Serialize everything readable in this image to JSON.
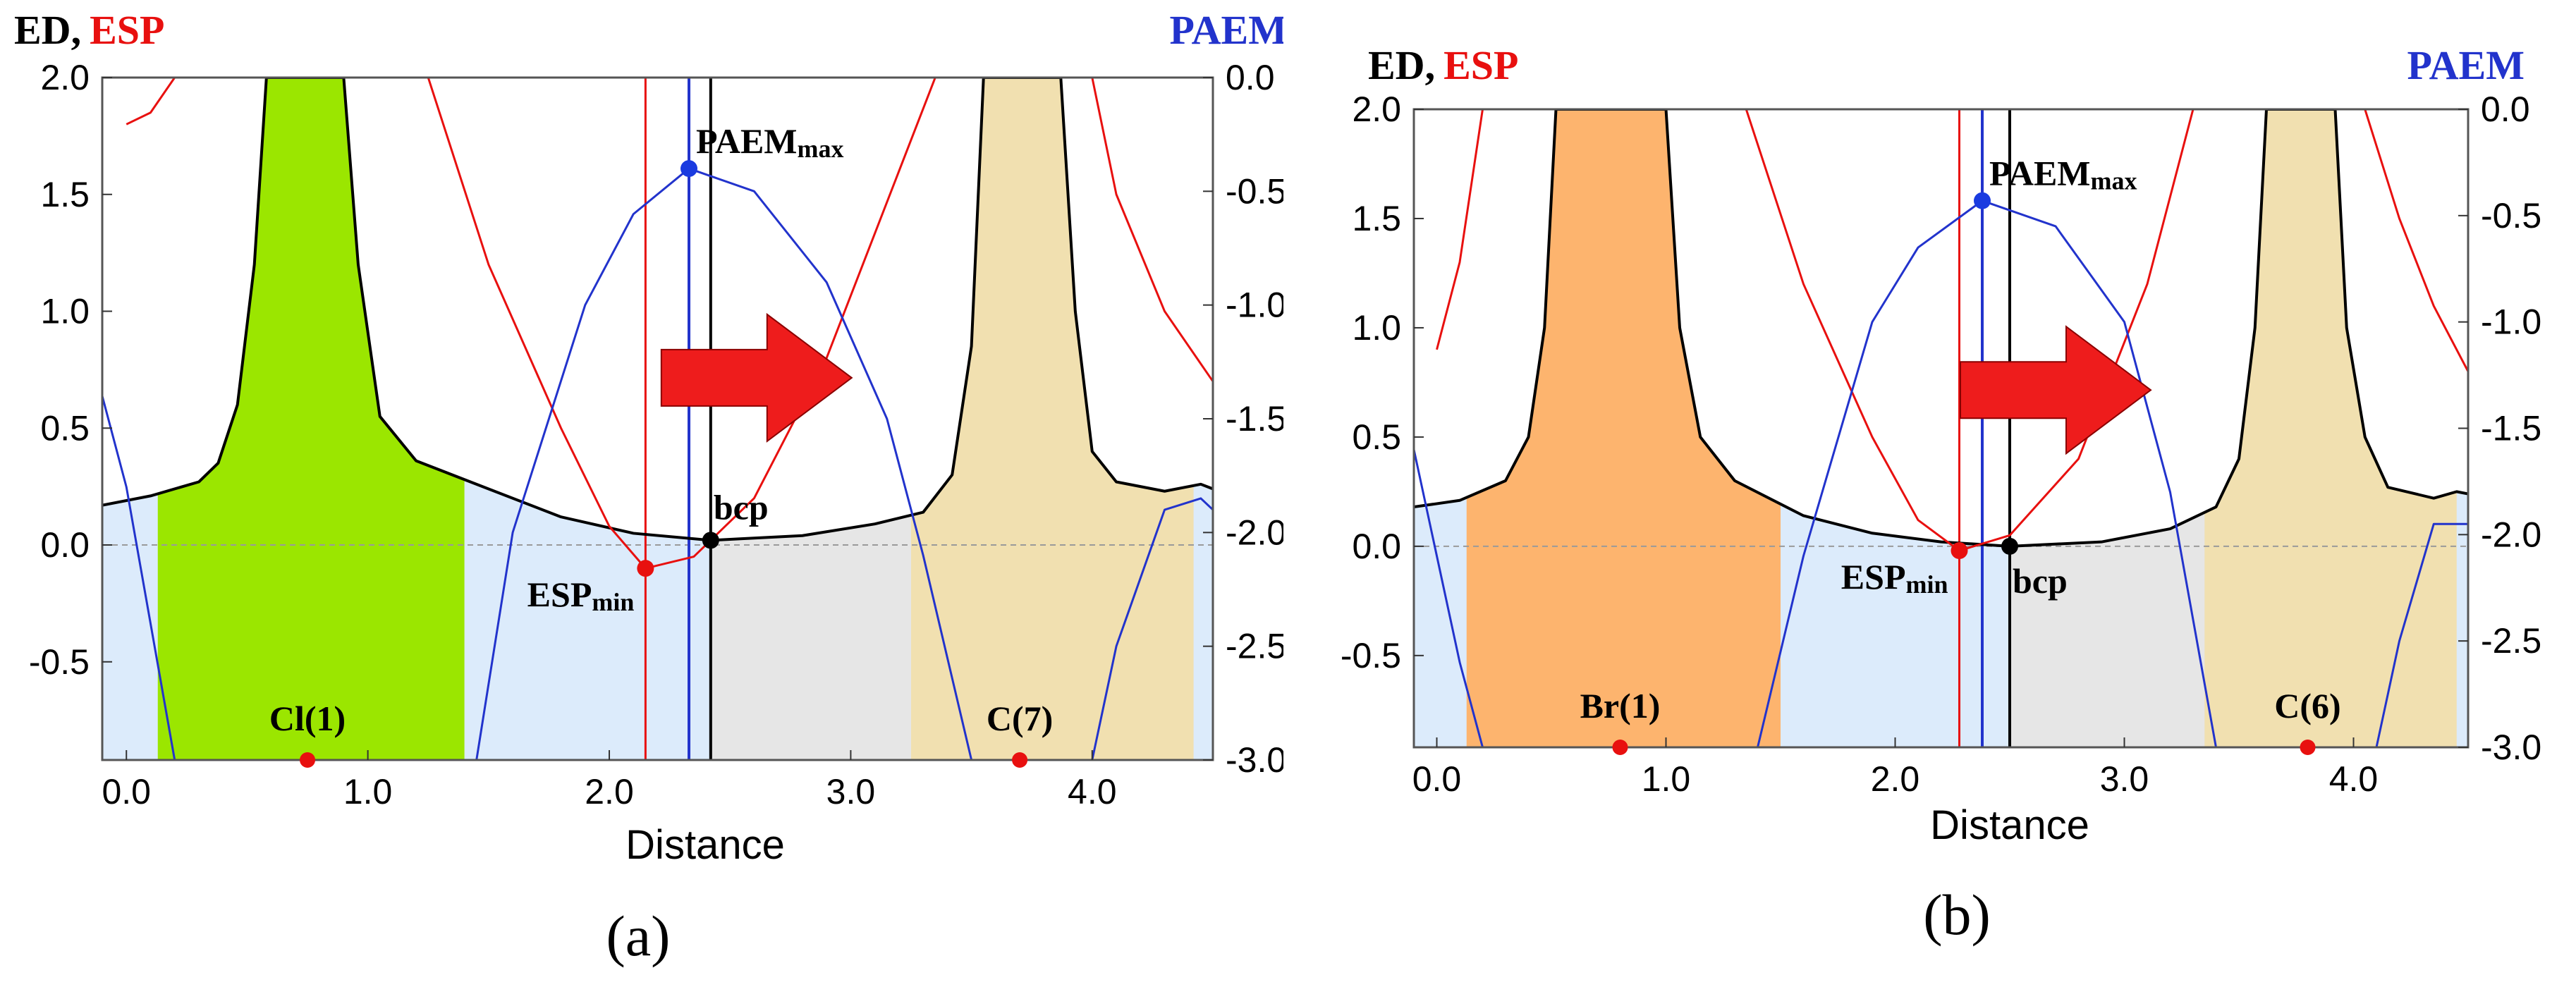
{
  "chart_data": [
    {
      "type": "line",
      "panel_label": "(a)",
      "left_axis_title": {
        "ed": "ED,",
        "esp": "ESP"
      },
      "right_axis_title": "PAEM",
      "xlabel": "Distance",
      "xlim": [
        -0.1,
        4.5
      ],
      "ylim_left": [
        -0.92,
        2.0
      ],
      "ylim_right": [
        -3.0,
        0.0
      ],
      "x_ticks": [
        "0.0",
        "1.0",
        "2.0",
        "3.0",
        "4.0"
      ],
      "y_ticks_left": [
        "2.0",
        "1.5",
        "1.0",
        "0.5",
        "0.0",
        "-0.5"
      ],
      "y_ticks_right": [
        "0.0",
        "-0.5",
        "-1.0",
        "-1.5",
        "-2.0",
        "-2.5",
        "-3.0"
      ],
      "atoms": [
        {
          "label": "Cl(1)",
          "x": 0.75,
          "color": "#9be600"
        },
        {
          "label": "C(7)",
          "x": 3.7,
          "color": "#f1e0b0"
        }
      ],
      "basin_boundaries": [
        0.13,
        1.4,
        3.25,
        4.42
      ],
      "esp_min": {
        "label": "ESP",
        "sub": "min",
        "x": 2.15,
        "y": -0.1
      },
      "paem_max": {
        "label": "PAEM",
        "sub": "max",
        "x": 2.33,
        "y": -0.4
      },
      "bcp": {
        "label": "bcp",
        "x": 2.42,
        "y": 0.02
      },
      "series": [
        {
          "name": "ED",
          "color": "#000000",
          "points": [
            [
              -0.1,
              0.17
            ],
            [
              0.1,
              0.21
            ],
            [
              0.3,
              0.27
            ],
            [
              0.38,
              0.35
            ],
            [
              0.46,
              0.6
            ],
            [
              0.53,
              1.2
            ],
            [
              0.58,
              2.0
            ],
            [
              0.9,
              2.0
            ],
            [
              0.96,
              1.2
            ],
            [
              1.05,
              0.55
            ],
            [
              1.2,
              0.36
            ],
            [
              1.5,
              0.24
            ],
            [
              1.8,
              0.12
            ],
            [
              2.1,
              0.05
            ],
            [
              2.42,
              0.02
            ],
            [
              2.8,
              0.04
            ],
            [
              3.1,
              0.09
            ],
            [
              3.3,
              0.14
            ],
            [
              3.42,
              0.3
            ],
            [
              3.5,
              0.85
            ],
            [
              3.55,
              2.0
            ],
            [
              3.87,
              2.0
            ],
            [
              3.93,
              1.0
            ],
            [
              4.0,
              0.4
            ],
            [
              4.1,
              0.27
            ],
            [
              4.3,
              0.23
            ],
            [
              4.45,
              0.26
            ],
            [
              4.5,
              0.24
            ]
          ]
        },
        {
          "name": "ESP",
          "color": "#e8100f",
          "points": [
            [
              0.0,
              1.8
            ],
            [
              0.1,
              1.85
            ],
            [
              0.2,
              2.0
            ],
            [
              1.25,
              2.0
            ],
            [
              1.5,
              1.2
            ],
            [
              1.8,
              0.5
            ],
            [
              2.0,
              0.08
            ],
            [
              2.15,
              -0.1
            ],
            [
              2.35,
              -0.05
            ],
            [
              2.6,
              0.2
            ],
            [
              2.9,
              0.8
            ],
            [
              3.2,
              1.6
            ],
            [
              3.35,
              2.0
            ],
            [
              4.0,
              2.0
            ],
            [
              4.1,
              1.5
            ],
            [
              4.3,
              1.0
            ],
            [
              4.5,
              0.7
            ]
          ]
        },
        {
          "name": "PAEM",
          "color": "#2233cc",
          "points": [
            [
              -0.1,
              -1.4
            ],
            [
              0.0,
              -1.8
            ],
            [
              0.1,
              -2.4
            ],
            [
              0.2,
              -3.0
            ],
            [
              1.45,
              -3.0
            ],
            [
              1.6,
              -2.0
            ],
            [
              1.9,
              -1.0
            ],
            [
              2.1,
              -0.6
            ],
            [
              2.33,
              -0.4
            ],
            [
              2.6,
              -0.5
            ],
            [
              2.9,
              -0.9
            ],
            [
              3.15,
              -1.5
            ],
            [
              3.3,
              -2.1
            ],
            [
              3.5,
              -3.0
            ],
            [
              4.0,
              -3.0
            ],
            [
              4.1,
              -2.5
            ],
            [
              4.3,
              -1.9
            ],
            [
              4.45,
              -1.85
            ],
            [
              4.5,
              -1.9
            ]
          ]
        }
      ]
    },
    {
      "type": "line",
      "panel_label": "(b)",
      "left_axis_title": {
        "ed": "ED,",
        "esp": "ESP"
      },
      "right_axis_title": "PAEM",
      "xlabel": "Distance",
      "xlim": [
        -0.1,
        4.5
      ],
      "ylim_left": [
        -0.92,
        2.0
      ],
      "ylim_right": [
        -3.0,
        0.0
      ],
      "x_ticks": [
        "0.0",
        "1.0",
        "2.0",
        "3.0",
        "4.0"
      ],
      "y_ticks_left": [
        "2.0",
        "1.5",
        "1.0",
        "0.5",
        "0.0",
        "-0.5"
      ],
      "y_ticks_right": [
        "0.0",
        "-0.5",
        "-1.0",
        "-1.5",
        "-2.0",
        "-2.5",
        "-3.0"
      ],
      "atoms": [
        {
          "label": "Br(1)",
          "x": 0.8,
          "color": "#fdb46e"
        },
        {
          "label": "C(6)",
          "x": 3.8,
          "color": "#f1e0b0"
        }
      ],
      "basin_boundaries": [
        0.13,
        1.5,
        3.35,
        4.45
      ],
      "esp_min": {
        "label": "ESP",
        "sub": "min",
        "x": 2.28,
        "y": -0.02
      },
      "paem_max": {
        "label": "PAEM",
        "sub": "max",
        "x": 2.38,
        "y": -0.43
      },
      "bcp": {
        "label": "bcp",
        "x": 2.5,
        "y": 0.0
      },
      "series": [
        {
          "name": "ED",
          "color": "#000000",
          "points": [
            [
              -0.1,
              0.18
            ],
            [
              0.1,
              0.21
            ],
            [
              0.3,
              0.3
            ],
            [
              0.4,
              0.5
            ],
            [
              0.47,
              1.0
            ],
            [
              0.52,
              2.0
            ],
            [
              1.0,
              2.0
            ],
            [
              1.06,
              1.0
            ],
            [
              1.15,
              0.5
            ],
            [
              1.3,
              0.3
            ],
            [
              1.6,
              0.14
            ],
            [
              1.9,
              0.06
            ],
            [
              2.2,
              0.02
            ],
            [
              2.5,
              0.0
            ],
            [
              2.9,
              0.02
            ],
            [
              3.2,
              0.08
            ],
            [
              3.4,
              0.18
            ],
            [
              3.5,
              0.4
            ],
            [
              3.57,
              1.0
            ],
            [
              3.62,
              2.0
            ],
            [
              3.92,
              2.0
            ],
            [
              3.97,
              1.0
            ],
            [
              4.05,
              0.5
            ],
            [
              4.15,
              0.27
            ],
            [
              4.35,
              0.22
            ],
            [
              4.45,
              0.25
            ],
            [
              4.5,
              0.24
            ]
          ]
        },
        {
          "name": "ESP",
          "color": "#e8100f",
          "points": [
            [
              0.0,
              0.9
            ],
            [
              0.1,
              1.3
            ],
            [
              0.2,
              2.0
            ],
            [
              1.35,
              2.0
            ],
            [
              1.6,
              1.2
            ],
            [
              1.9,
              0.5
            ],
            [
              2.1,
              0.12
            ],
            [
              2.28,
              -0.02
            ],
            [
              2.5,
              0.05
            ],
            [
              2.8,
              0.4
            ],
            [
              3.1,
              1.2
            ],
            [
              3.3,
              2.0
            ],
            [
              4.05,
              2.0
            ],
            [
              4.2,
              1.5
            ],
            [
              4.35,
              1.1
            ],
            [
              4.5,
              0.8
            ]
          ]
        },
        {
          "name": "PAEM",
          "color": "#2233cc",
          "points": [
            [
              -0.1,
              -1.6
            ],
            [
              0.0,
              -2.1
            ],
            [
              0.1,
              -2.6
            ],
            [
              0.2,
              -3.0
            ],
            [
              1.4,
              -3.0
            ],
            [
              1.6,
              -2.1
            ],
            [
              1.9,
              -1.0
            ],
            [
              2.1,
              -0.65
            ],
            [
              2.38,
              -0.43
            ],
            [
              2.7,
              -0.55
            ],
            [
              3.0,
              -1.0
            ],
            [
              3.2,
              -1.8
            ],
            [
              3.4,
              -3.0
            ],
            [
              4.1,
              -3.0
            ],
            [
              4.2,
              -2.5
            ],
            [
              4.35,
              -1.95
            ],
            [
              4.5,
              -1.95
            ]
          ]
        }
      ]
    }
  ]
}
